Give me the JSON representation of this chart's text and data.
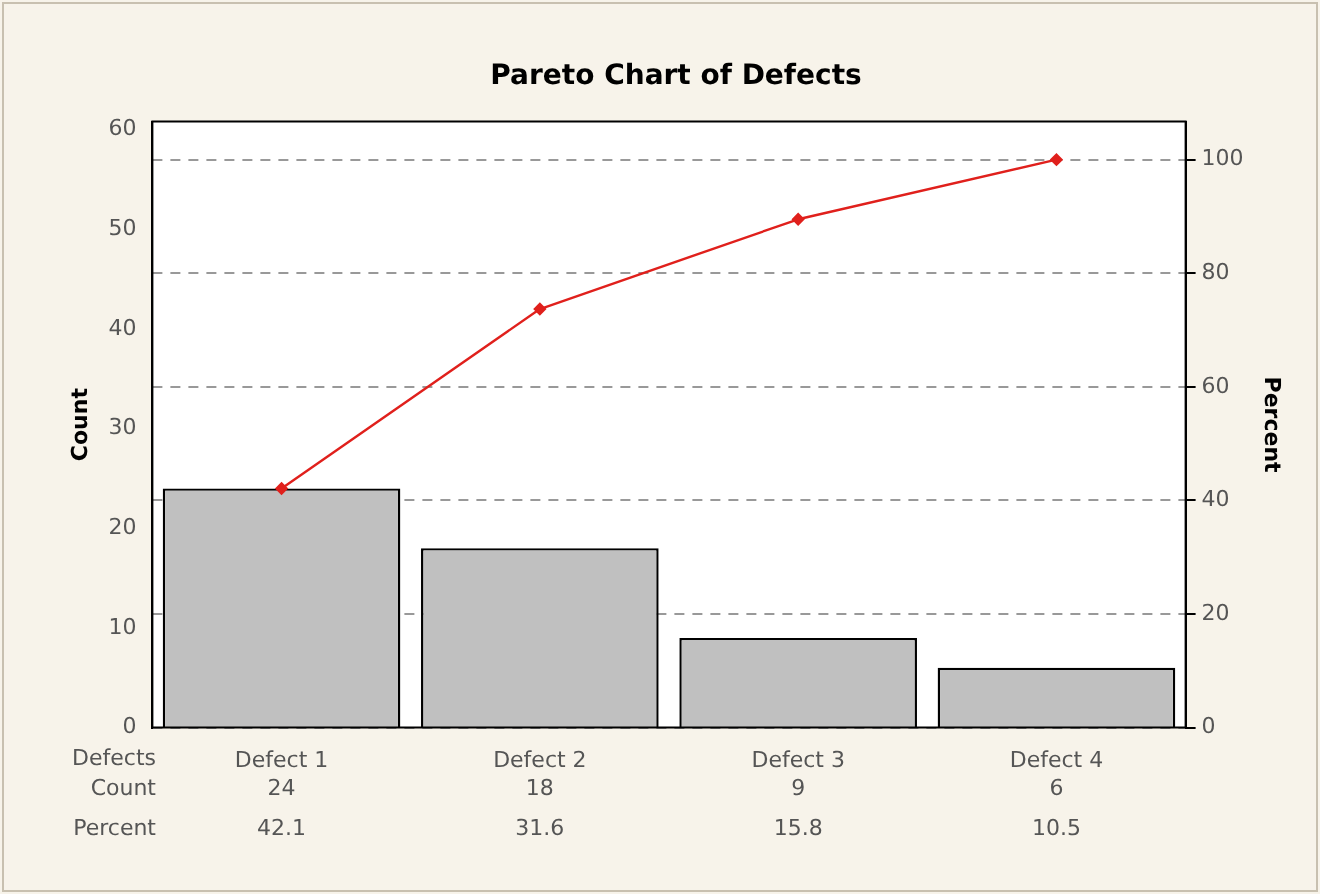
{
  "chart_data": {
    "type": "bar",
    "title": "Pareto Chart of Defects",
    "xlabel": "Defects",
    "ylabel": "Count",
    "y2label": "Percent",
    "categories": [
      "Defect 1",
      "Defect 2",
      "Defect 3",
      "Defect 4"
    ],
    "series": [
      {
        "name": "Count",
        "color": "#c0c0c0",
        "values": [
          24,
          18,
          9,
          6
        ],
        "value_labels": [
          "24",
          "18",
          "9",
          "6"
        ]
      },
      {
        "type": "line",
        "axis": "y2",
        "color": "#e0201c",
        "marker": "diamond",
        "line_style": "solid",
        "values": [
          42.1,
          73.7,
          89.5,
          100
        ]
      }
    ],
    "ylim": [
      0,
      60.8
    ],
    "yticks": [
      0,
      10,
      20,
      30,
      40,
      50,
      60
    ],
    "y2lim": [
      0,
      106.7
    ],
    "y2ticks": [
      0,
      20,
      40,
      60,
      80,
      100
    ],
    "grid": "y2",
    "annotations": [
      "Percent",
      "42.1",
      "31.6",
      "15.8",
      "10.5"
    ]
  }
}
